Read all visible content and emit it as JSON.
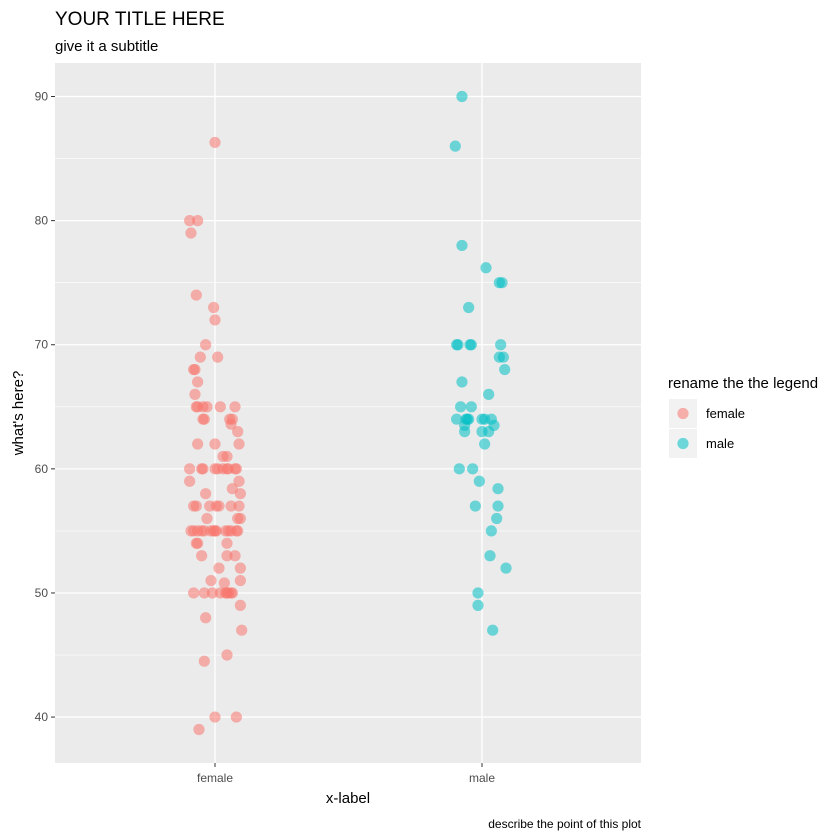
{
  "chart_data": {
    "type": "scatter",
    "title": "YOUR TITLE HERE",
    "subtitle": "give it a subtitle",
    "xlabel": "x-label",
    "ylabel": "what's here?",
    "caption": "describe the point of this plot",
    "legend_title": "rename the the legend",
    "legend_placement": "right",
    "grid": true,
    "categories": [
      "female",
      "male"
    ],
    "ylim": [
      36.3,
      92.7
    ],
    "yticks": [
      40,
      50,
      60,
      70,
      80,
      90
    ],
    "series": [
      {
        "name": "female",
        "color": "#F8766D",
        "points": [
          {
            "x": -0.19,
            "y": 80
          },
          {
            "x": -0.13,
            "y": 80
          },
          {
            "x": -0.18,
            "y": 79
          },
          {
            "x": 0.0,
            "y": 86.3
          },
          {
            "x": -0.14,
            "y": 74
          },
          {
            "x": -0.01,
            "y": 73
          },
          {
            "x": 0.0,
            "y": 72
          },
          {
            "x": -0.07,
            "y": 70
          },
          {
            "x": -0.11,
            "y": 69
          },
          {
            "x": 0.02,
            "y": 69
          },
          {
            "x": -0.16,
            "y": 68
          },
          {
            "x": -0.15,
            "y": 68
          },
          {
            "x": -0.13,
            "y": 67
          },
          {
            "x": -0.15,
            "y": 66
          },
          {
            "x": -0.14,
            "y": 65
          },
          {
            "x": -0.13,
            "y": 65
          },
          {
            "x": -0.09,
            "y": 65
          },
          {
            "x": -0.06,
            "y": 65
          },
          {
            "x": 0.04,
            "y": 65
          },
          {
            "x": 0.15,
            "y": 65
          },
          {
            "x": -0.09,
            "y": 64
          },
          {
            "x": -0.08,
            "y": 64
          },
          {
            "x": 0.11,
            "y": 64
          },
          {
            "x": 0.13,
            "y": 64
          },
          {
            "x": 0.12,
            "y": 63.6
          },
          {
            "x": 0.17,
            "y": 63
          },
          {
            "x": -0.13,
            "y": 62
          },
          {
            "x": 0.0,
            "y": 62
          },
          {
            "x": 0.18,
            "y": 62
          },
          {
            "x": 0.06,
            "y": 61
          },
          {
            "x": 0.09,
            "y": 61
          },
          {
            "x": -0.19,
            "y": 60
          },
          {
            "x": -0.1,
            "y": 60
          },
          {
            "x": -0.09,
            "y": 60
          },
          {
            "x": 0.0,
            "y": 60
          },
          {
            "x": 0.02,
            "y": 60
          },
          {
            "x": 0.06,
            "y": 60
          },
          {
            "x": 0.09,
            "y": 60
          },
          {
            "x": 0.1,
            "y": 60
          },
          {
            "x": 0.15,
            "y": 60
          },
          {
            "x": 0.16,
            "y": 60
          },
          {
            "x": -0.19,
            "y": 59
          },
          {
            "x": 0.18,
            "y": 59
          },
          {
            "x": 0.13,
            "y": 58.4
          },
          {
            "x": -0.07,
            "y": 58
          },
          {
            "x": 0.19,
            "y": 58
          },
          {
            "x": -0.16,
            "y": 57
          },
          {
            "x": -0.14,
            "y": 57
          },
          {
            "x": -0.04,
            "y": 57
          },
          {
            "x": 0.01,
            "y": 57
          },
          {
            "x": 0.03,
            "y": 57
          },
          {
            "x": 0.12,
            "y": 57
          },
          {
            "x": 0.18,
            "y": 57
          },
          {
            "x": -0.06,
            "y": 56
          },
          {
            "x": 0.17,
            "y": 56
          },
          {
            "x": 0.19,
            "y": 56
          },
          {
            "x": -0.18,
            "y": 55
          },
          {
            "x": -0.16,
            "y": 55
          },
          {
            "x": -0.13,
            "y": 55
          },
          {
            "x": -0.1,
            "y": 55
          },
          {
            "x": -0.08,
            "y": 55
          },
          {
            "x": -0.03,
            "y": 55
          },
          {
            "x": -0.01,
            "y": 55
          },
          {
            "x": 0.0,
            "y": 55
          },
          {
            "x": 0.01,
            "y": 55
          },
          {
            "x": 0.08,
            "y": 55
          },
          {
            "x": 0.1,
            "y": 55
          },
          {
            "x": 0.12,
            "y": 55
          },
          {
            "x": 0.16,
            "y": 55
          },
          {
            "x": 0.17,
            "y": 55
          },
          {
            "x": -0.14,
            "y": 54
          },
          {
            "x": -0.13,
            "y": 54
          },
          {
            "x": 0.09,
            "y": 54
          },
          {
            "x": -0.1,
            "y": 53
          },
          {
            "x": 0.09,
            "y": 53
          },
          {
            "x": 0.15,
            "y": 53
          },
          {
            "x": 0.03,
            "y": 52
          },
          {
            "x": 0.19,
            "y": 52
          },
          {
            "x": -0.03,
            "y": 51
          },
          {
            "x": 0.07,
            "y": 50.8
          },
          {
            "x": 0.19,
            "y": 51
          },
          {
            "x": -0.16,
            "y": 50
          },
          {
            "x": -0.08,
            "y": 50
          },
          {
            "x": -0.02,
            "y": 50
          },
          {
            "x": 0.04,
            "y": 50
          },
          {
            "x": 0.08,
            "y": 50
          },
          {
            "x": 0.09,
            "y": 50
          },
          {
            "x": 0.1,
            "y": 50
          },
          {
            "x": 0.12,
            "y": 50
          },
          {
            "x": 0.13,
            "y": 50
          },
          {
            "x": 0.19,
            "y": 49
          },
          {
            "x": -0.07,
            "y": 48
          },
          {
            "x": 0.2,
            "y": 47
          },
          {
            "x": 0.09,
            "y": 45
          },
          {
            "x": -0.08,
            "y": 44.5
          },
          {
            "x": 0.0,
            "y": 40
          },
          {
            "x": 0.16,
            "y": 40
          },
          {
            "x": -0.12,
            "y": 39
          }
        ]
      },
      {
        "name": "male",
        "color": "#00BFC4",
        "points": [
          {
            "x": -0.15,
            "y": 90
          },
          {
            "x": -0.2,
            "y": 86
          },
          {
            "x": -0.15,
            "y": 78
          },
          {
            "x": 0.03,
            "y": 76.2
          },
          {
            "x": 0.13,
            "y": 75
          },
          {
            "x": 0.15,
            "y": 75
          },
          {
            "x": -0.1,
            "y": 73
          },
          {
            "x": -0.19,
            "y": 70
          },
          {
            "x": -0.18,
            "y": 70
          },
          {
            "x": -0.09,
            "y": 70
          },
          {
            "x": -0.08,
            "y": 70
          },
          {
            "x": 0.14,
            "y": 70
          },
          {
            "x": 0.13,
            "y": 69
          },
          {
            "x": 0.16,
            "y": 69
          },
          {
            "x": 0.17,
            "y": 68
          },
          {
            "x": -0.15,
            "y": 67
          },
          {
            "x": 0.05,
            "y": 66
          },
          {
            "x": -0.16,
            "y": 65
          },
          {
            "x": -0.08,
            "y": 65
          },
          {
            "x": -0.19,
            "y": 64
          },
          {
            "x": -0.12,
            "y": 64
          },
          {
            "x": -0.11,
            "y": 64
          },
          {
            "x": -0.1,
            "y": 64
          },
          {
            "x": 0.0,
            "y": 64
          },
          {
            "x": 0.02,
            "y": 64
          },
          {
            "x": 0.07,
            "y": 64
          },
          {
            "x": -0.13,
            "y": 63.5
          },
          {
            "x": 0.09,
            "y": 63.5
          },
          {
            "x": -0.13,
            "y": 63
          },
          {
            "x": 0.0,
            "y": 63
          },
          {
            "x": 0.05,
            "y": 63
          },
          {
            "x": 0.02,
            "y": 62
          },
          {
            "x": -0.17,
            "y": 60
          },
          {
            "x": -0.07,
            "y": 60
          },
          {
            "x": -0.02,
            "y": 59
          },
          {
            "x": 0.12,
            "y": 58.4
          },
          {
            "x": -0.05,
            "y": 57
          },
          {
            "x": 0.12,
            "y": 57
          },
          {
            "x": 0.11,
            "y": 56
          },
          {
            "x": 0.07,
            "y": 55
          },
          {
            "x": 0.06,
            "y": 53
          },
          {
            "x": 0.18,
            "y": 52
          },
          {
            "x": -0.03,
            "y": 50
          },
          {
            "x": -0.03,
            "y": 49
          },
          {
            "x": 0.08,
            "y": 47
          }
        ]
      }
    ]
  }
}
